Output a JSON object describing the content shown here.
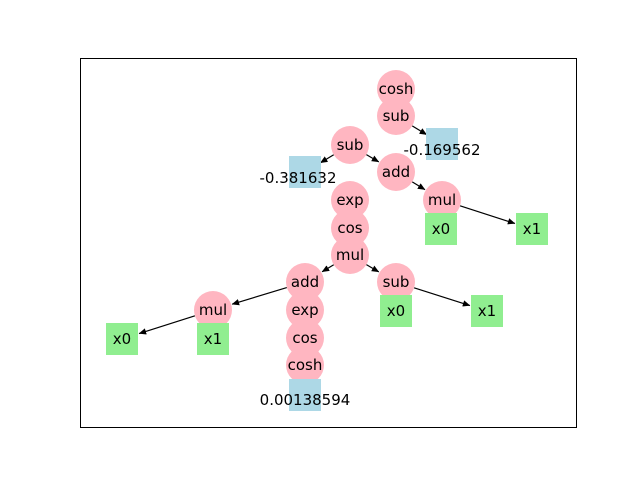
{
  "tree": {
    "colors": {
      "operator": "#ffb6c1",
      "variable": "#90ee90",
      "constant": "#add8e6",
      "edge": "#000000",
      "frame": "#000000"
    },
    "nodes": [
      {
        "id": "cosh1",
        "label": "cosh",
        "kind": "operator"
      },
      {
        "id": "sub1",
        "label": "sub",
        "kind": "operator"
      },
      {
        "id": "c1",
        "label": "-0.169562",
        "kind": "constant"
      },
      {
        "id": "sub2",
        "label": "sub",
        "kind": "operator"
      },
      {
        "id": "c2",
        "label": "-0.381632",
        "kind": "constant"
      },
      {
        "id": "add1",
        "label": "add",
        "kind": "operator"
      },
      {
        "id": "mul1",
        "label": "mul",
        "kind": "operator"
      },
      {
        "id": "x0a",
        "label": "x0",
        "kind": "variable"
      },
      {
        "id": "x1a",
        "label": "x1",
        "kind": "variable"
      },
      {
        "id": "exp1",
        "label": "exp",
        "kind": "operator"
      },
      {
        "id": "cos1",
        "label": "cos",
        "kind": "operator"
      },
      {
        "id": "mul2",
        "label": "mul",
        "kind": "operator"
      },
      {
        "id": "add2",
        "label": "add",
        "kind": "operator"
      },
      {
        "id": "sub3",
        "label": "sub",
        "kind": "operator"
      },
      {
        "id": "x0b",
        "label": "x0",
        "kind": "variable"
      },
      {
        "id": "x1b",
        "label": "x1",
        "kind": "variable"
      },
      {
        "id": "mul3",
        "label": "mul",
        "kind": "operator"
      },
      {
        "id": "x0c",
        "label": "x0",
        "kind": "variable"
      },
      {
        "id": "x1c",
        "label": "x1",
        "kind": "variable"
      },
      {
        "id": "exp2",
        "label": "exp",
        "kind": "operator"
      },
      {
        "id": "cos2",
        "label": "cos",
        "kind": "operator"
      },
      {
        "id": "cosh2",
        "label": "cosh",
        "kind": "operator"
      },
      {
        "id": "c3",
        "label": "0.00138594",
        "kind": "constant"
      }
    ],
    "edges": [
      [
        "sub1",
        "c1"
      ],
      [
        "sub2",
        "c2"
      ],
      [
        "sub2",
        "add1"
      ],
      [
        "add1",
        "mul1"
      ],
      [
        "mul1",
        "x1a"
      ],
      [
        "mul2",
        "add2"
      ],
      [
        "mul2",
        "sub3"
      ],
      [
        "add2",
        "mul3"
      ],
      [
        "mul3",
        "x0c"
      ],
      [
        "sub3",
        "x1b"
      ]
    ]
  }
}
